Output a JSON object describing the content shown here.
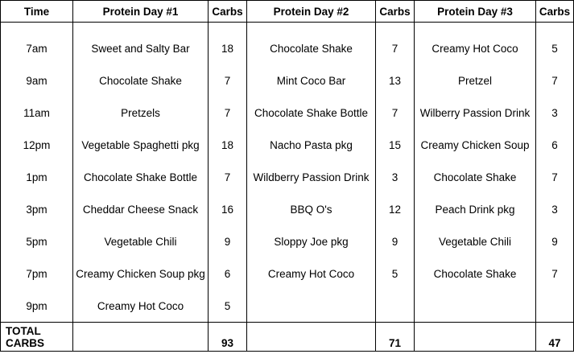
{
  "headers": [
    "Time",
    "Protein Day #1",
    "Carbs",
    "Protein Day #2",
    "Carbs",
    "Protein Day #3",
    "Carbs"
  ],
  "rows": [
    [
      "7am",
      "Sweet and Salty Bar",
      "18",
      "Chocolate Shake",
      "7",
      "Creamy Hot Coco",
      "5"
    ],
    [
      "9am",
      "Chocolate Shake",
      "7",
      "Mint Coco Bar",
      "13",
      "Pretzel",
      "7"
    ],
    [
      "11am",
      "Pretzels",
      "7",
      "Chocolate Shake Bottle",
      "7",
      "Wilberry Passion Drink",
      "3"
    ],
    [
      "12pm",
      "Vegetable Spaghetti pkg",
      "18",
      "Nacho Pasta pkg",
      "15",
      "Creamy Chicken Soup",
      "6"
    ],
    [
      "1pm",
      "Chocolate Shake Bottle",
      "7",
      "Wildberry Passion Drink",
      "3",
      "Chocolate Shake",
      "7"
    ],
    [
      "3pm",
      "Cheddar Cheese Snack",
      "16",
      "BBQ O's",
      "12",
      "Peach Drink pkg",
      "3"
    ],
    [
      "5pm",
      "Vegetable Chili",
      "9",
      "Sloppy Joe pkg",
      "9",
      "Vegetable Chili",
      "9"
    ],
    [
      "7pm",
      "Creamy Chicken Soup pkg",
      "6",
      "Creamy Hot Coco",
      "5",
      "Chocolate Shake",
      "7"
    ],
    [
      "9pm",
      "Creamy Hot Coco",
      "5",
      "",
      "",
      "",
      ""
    ]
  ],
  "totals": {
    "label_line1": "TOTAL",
    "label_line2": "CARBS",
    "day1": "93",
    "day2": "71",
    "day3": "47"
  }
}
